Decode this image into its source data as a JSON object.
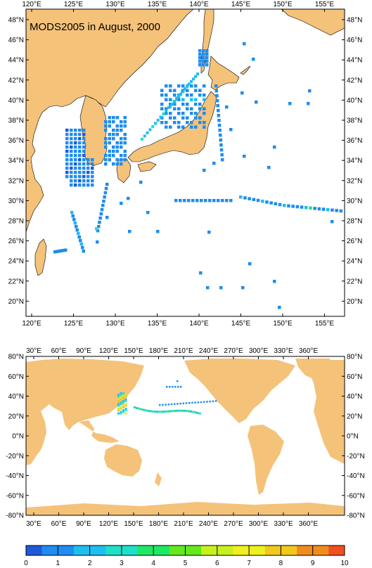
{
  "upper_map": {
    "title": "MODS2005 in August, 2000",
    "x_ticks": [
      "120°E",
      "125°E",
      "130°E",
      "135°E",
      "140°E",
      "145°E",
      "150°E",
      "155°E"
    ],
    "y_ticks": [
      "48°N",
      "46°N",
      "44°N",
      "42°N",
      "40°N",
      "38°N",
      "36°N",
      "34°N",
      "32°N",
      "30°N",
      "28°N",
      "26°N",
      "24°N",
      "22°N",
      "20°N"
    ],
    "lon_range": [
      119.5,
      157.0
    ],
    "lat_range": [
      18.5,
      49.5
    ],
    "land_color": "#f5c27a"
  },
  "lower_map": {
    "x_ticks": [
      "30°E",
      "60°E",
      "90°E",
      "120°E",
      "150°E",
      "180°E",
      "210°E",
      "240°E",
      "270°E",
      "300°E",
      "330°E",
      "360°E"
    ],
    "y_ticks": [
      "80°N",
      "60°N",
      "40°N",
      "20°N",
      "0°N",
      "-20°N",
      "-40°N",
      "-60°N",
      "-80°N"
    ],
    "lon_range": [
      20,
      380
    ],
    "lat_range": [
      -80,
      80
    ]
  },
  "colorbar": {
    "labels": [
      "0",
      "1",
      "2",
      "3",
      "4",
      "5",
      "6",
      "7",
      "8",
      "9",
      "10"
    ],
    "colors": [
      "#1e5ad8",
      "#1e8cf0",
      "#1ebef0",
      "#1ee0c8",
      "#1ee864",
      "#64e81e",
      "#c8f01e",
      "#f0f01e",
      "#f0c81e",
      "#f08c1e",
      "#f0501e"
    ]
  }
}
